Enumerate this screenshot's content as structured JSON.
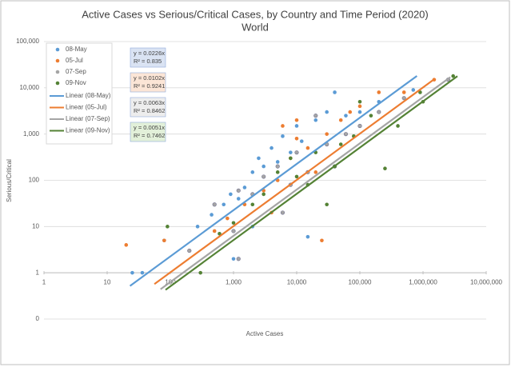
{
  "chart_data": {
    "type": "scatter",
    "title": "Active Cases vs Serious/Critical Cases, by Country and Time Period (2020)",
    "subtitle": "World",
    "x_label": "Active Cases",
    "y_label": "Serious/Critical",
    "log_x": true,
    "log_y": true,
    "grid": true,
    "legend": "upper left",
    "xlim": [
      1,
      10000000
    ],
    "ylim": [
      0.1,
      100000
    ],
    "xticks": [
      1,
      10,
      100,
      {
        "value": 1000,
        "label": "1,000"
      },
      {
        "value": 10000,
        "label": "10,000"
      },
      {
        "value": 100000,
        "label": "100,000"
      },
      {
        "value": 1000000,
        "label": "1,000,000"
      },
      {
        "value": 10000000,
        "label": "10,000,000"
      }
    ],
    "yticks": [
      {
        "value": 0.1,
        "label": "0"
      },
      1,
      10,
      100,
      {
        "value": 1000,
        "label": "1,000"
      },
      {
        "value": 10000,
        "label": "10,000"
      },
      {
        "value": 100000,
        "label": "100,000"
      }
    ],
    "series": [
      {
        "name": "08-May",
        "color": "#5b9bd5",
        "x": [
          25,
          36,
          80,
          270,
          450,
          700,
          900,
          1200,
          1500,
          2000,
          2500,
          3000,
          4000,
          5000,
          6000,
          8000,
          10000,
          12000,
          20000,
          30000,
          40000,
          60000,
          100000,
          200000,
          700000,
          1000,
          2000,
          15000
        ],
        "values": [
          1,
          1,
          5,
          10,
          18,
          30,
          50,
          40,
          70,
          150,
          300,
          200,
          500,
          250,
          900,
          400,
          1500,
          700,
          2000,
          3000,
          8000,
          2500,
          3000,
          5000,
          9000,
          2,
          10,
          6
        ],
        "trendline": {
          "name": "Linear (08-May)",
          "slope": 0.0226,
          "equation": "y = 0.0226x",
          "r2": "R² = 0.835",
          "x_range": [
            23,
            800000
          ],
          "box": "#dae3f3"
        }
      },
      {
        "name": "05-Jul",
        "color": "#ed7d31",
        "x": [
          20,
          80,
          200,
          500,
          800,
          1500,
          3000,
          5000,
          6000,
          8000,
          10000,
          15000,
          20000,
          25000,
          30000,
          50000,
          70000,
          100000,
          200000,
          500000,
          1500000,
          10000,
          4000
        ],
        "values": [
          4,
          5,
          3,
          8,
          15,
          30,
          60,
          100,
          1500,
          300,
          800,
          500,
          150,
          5,
          1000,
          2000,
          3000,
          4000,
          8000,
          8000,
          15000,
          2000,
          20
        ],
        "trendline": {
          "name": "Linear (05-Jul)",
          "slope": 0.0102,
          "equation": "y = 0.0102x",
          "r2": "R² = 0.9241",
          "x_range": [
            56,
            1500000
          ],
          "box": "#fbe5d6"
        }
      },
      {
        "name": "07-Sep",
        "color": "#a5a5a5",
        "x": [
          200,
          500,
          1000,
          1200,
          2000,
          3000,
          5000,
          8000,
          10000,
          15000,
          20000,
          30000,
          40000,
          60000,
          100000,
          200000,
          500000,
          2500000,
          1200,
          6000
        ],
        "values": [
          3,
          30,
          8,
          2,
          50,
          120,
          200,
          80,
          400,
          150,
          2500,
          600,
          200,
          1000,
          1500,
          3000,
          6000,
          15000,
          60,
          20
        ],
        "trendline": {
          "name": "Linear (07-Sep)",
          "slope": 0.0063,
          "equation": "y = 0.0063x",
          "r2": "R² = 0.8462",
          "x_range": [
            70,
            2700000
          ],
          "box": "#ededed"
        }
      },
      {
        "name": "09-Nov",
        "color": "#548235",
        "x": [
          90,
          300,
          600,
          1000,
          2000,
          3000,
          5000,
          8000,
          10000,
          20000,
          30000,
          40000,
          50000,
          80000,
          100000,
          150000,
          250000,
          400000,
          900000,
          1000000,
          3000000,
          15000
        ],
        "values": [
          10,
          1,
          7,
          12,
          30,
          50,
          150,
          300,
          120,
          400,
          30,
          200,
          600,
          900,
          5000,
          2500,
          180,
          1500,
          8000,
          5000,
          18000,
          80
        ],
        "trendline": {
          "name": "Linear (09-Nov)",
          "slope": 0.0051,
          "equation": "y = 0.0051x",
          "r2": "R² = 0.7462",
          "x_range": [
            84,
            3500000
          ],
          "box": "#e2f0d9"
        }
      }
    ]
  }
}
